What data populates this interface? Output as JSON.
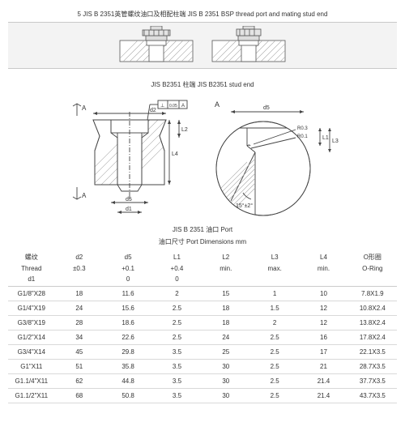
{
  "title": "5  JIS B 2351英管螺纹油口及相配柱端 JIS B 2351 BSP thread port and mating stud end",
  "caption_stud": "JIS B2351 柱端 JIS B2351 stud end",
  "caption_port": "JIS B 2351  油口 Port",
  "dim_label": "油口尺寸  Port Dimensions        mm",
  "label_A": "A",
  "label_d2": "d2",
  "label_d5": "d5",
  "label_d1": "d1",
  "label_L1": "L1",
  "label_L2": "L2",
  "label_L3": "L3",
  "label_L4": "L4",
  "label_R03": "R0.3",
  "label_R01": "R0.1",
  "label_angle": "15°±2°",
  "columns_row1": [
    "螺纹",
    "d2",
    "d5",
    "L1",
    "L2",
    "L3",
    "L4",
    "O形圈"
  ],
  "columns_row2": [
    "Thread",
    "±0.3",
    "+0.1",
    "+0.4",
    "min.",
    "max.",
    "min.",
    "O-Ring"
  ],
  "columns_row3": [
    "d1",
    "",
    "0",
    "0",
    "",
    "",
    "",
    ""
  ],
  "rows": [
    [
      "G1/8\"X28",
      "18",
      "11.6",
      "2",
      "15",
      "1",
      "10",
      "7.8X1.9"
    ],
    [
      "G1/4\"X19",
      "24",
      "15.6",
      "2.5",
      "18",
      "1.5",
      "12",
      "10.8X2.4"
    ],
    [
      "G3/8\"X19",
      "28",
      "18.6",
      "2.5",
      "18",
      "2",
      "12",
      "13.8X2.4"
    ],
    [
      "G1/2\"X14",
      "34",
      "22.6",
      "2.5",
      "24",
      "2.5",
      "16",
      "17.8X2.4"
    ],
    [
      "G3/4\"X14",
      "45",
      "29.8",
      "3.5",
      "25",
      "2.5",
      "17",
      "22.1X3.5"
    ],
    [
      "G1\"X11",
      "51",
      "35.8",
      "3.5",
      "30",
      "2.5",
      "21",
      "28.7X3.5"
    ],
    [
      "G1.1/4\"X11",
      "62",
      "44.8",
      "3.5",
      "30",
      "2.5",
      "21.4",
      "37.7X3.5"
    ],
    [
      "G1.1/2\"X11",
      "68",
      "50.8",
      "3.5",
      "30",
      "2.5",
      "21.4",
      "43.7X3.5"
    ]
  ],
  "colors": {
    "line": "#555555",
    "fill": "#d0d0d0",
    "hatch": "#888888",
    "bg": "#f3f3f3"
  }
}
